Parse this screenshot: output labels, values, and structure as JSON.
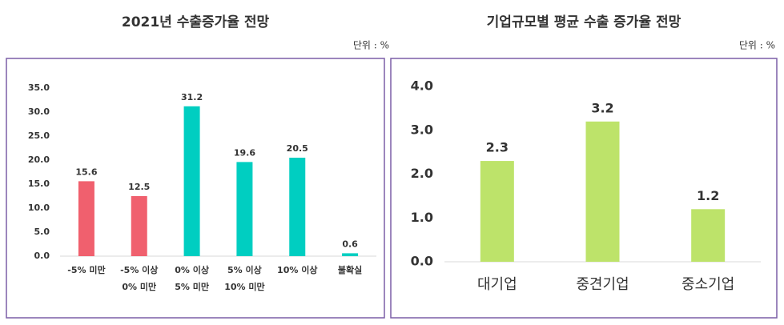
{
  "chart_data": [
    {
      "type": "bar",
      "title": "2021년 수출증가율 전망",
      "unit": "단위 : %",
      "categories": [
        [
          "-5% 미만"
        ],
        [
          "-5% 이상",
          "0% 미만"
        ],
        [
          "0% 이상",
          "5% 미만"
        ],
        [
          "5% 이상",
          "10% 미만"
        ],
        [
          "10% 이상"
        ],
        [
          "불확실"
        ]
      ],
      "values": [
        15.6,
        12.5,
        31.2,
        19.6,
        20.5,
        0.6
      ],
      "colors": [
        "#f0606e",
        "#f0606e",
        "#00cec1",
        "#00cec1",
        "#00cec1",
        "#00cec1"
      ],
      "ylim": [
        0,
        35
      ],
      "yticks": [
        {
          "value": 0,
          "label": "0.0"
        },
        {
          "value": 5,
          "label": "5.0"
        },
        {
          "value": 10,
          "label": "10.0"
        },
        {
          "value": 15,
          "label": "15.0"
        },
        {
          "value": 20,
          "label": "20.0"
        },
        {
          "value": 25,
          "label": "25.0"
        },
        {
          "value": 30,
          "label": "30.0"
        },
        {
          "value": 35,
          "label": "35.0"
        }
      ]
    },
    {
      "type": "bar",
      "title": "기업규모별 평균 수출 증가율 전망",
      "unit": "단위 : %",
      "categories": [
        [
          "대기업"
        ],
        [
          "중견기업"
        ],
        [
          "중소기업"
        ]
      ],
      "values": [
        2.3,
        3.2,
        1.2
      ],
      "colors": [
        "#bde36a",
        "#bde36a",
        "#bde36a"
      ],
      "ylim": [
        0,
        4
      ],
      "yticks": [
        {
          "value": 0,
          "label": "0.0"
        },
        {
          "value": 1,
          "label": "1.0"
        },
        {
          "value": 2,
          "label": "2.0"
        },
        {
          "value": 3,
          "label": "3.0"
        },
        {
          "value": 4,
          "label": "4.0"
        }
      ]
    }
  ]
}
